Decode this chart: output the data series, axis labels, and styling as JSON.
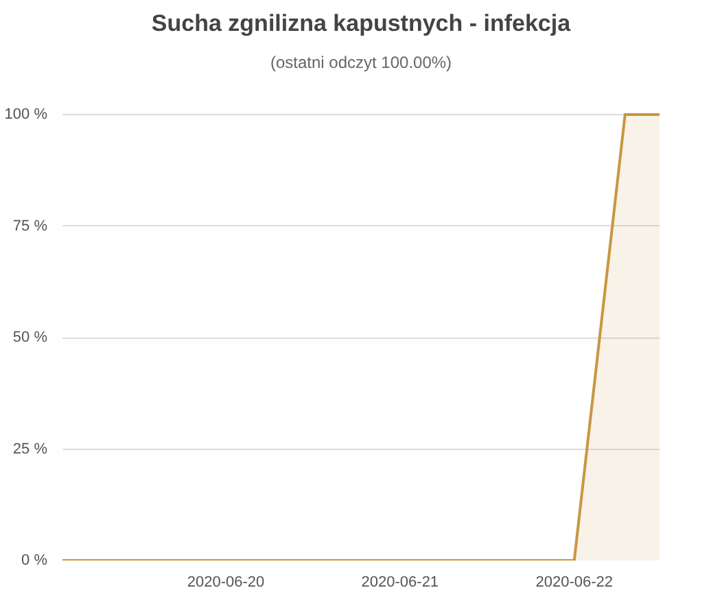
{
  "chart_data": {
    "type": "area",
    "title": "Sucha zgnilizna kapustnych - infekcja",
    "subtitle": "(ostatni odczyt 100.00%)",
    "x": [
      "2020-06-19T01:30",
      "2020-06-22T00:00",
      "2020-06-22T07:00",
      "2020-06-22T11:45"
    ],
    "series": [
      {
        "color": "#c9963f",
        "values": [
          0,
          0,
          100,
          100
        ]
      }
    ],
    "xlim": [
      "2020-06-19T01:30",
      "2020-06-22T11:45"
    ],
    "xticks": [
      "2020-06-20",
      "2020-06-21",
      "2020-06-22"
    ],
    "ylim": [
      0,
      100
    ],
    "yticks": [
      {
        "value": 0,
        "label": "0 %"
      },
      {
        "value": 25,
        "label": "25 %"
      },
      {
        "value": 50,
        "label": "50 %"
      },
      {
        "value": 75,
        "label": "75 %"
      },
      {
        "value": 100,
        "label": "100 %"
      }
    ],
    "grid": "y"
  }
}
